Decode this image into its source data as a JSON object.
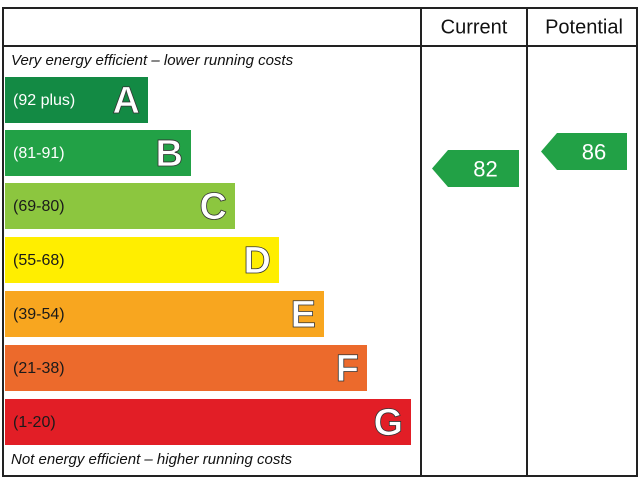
{
  "header": {
    "current": "Current",
    "potential": "Potential"
  },
  "top_note": "Very energy efficient – lower running costs",
  "bands": [
    {
      "range": "(92 plus)",
      "letter": "A",
      "color": "#138a44",
      "text_color": "#ffffff"
    },
    {
      "range": "(81-91)",
      "letter": "B",
      "color": "#22a146",
      "text_color": "#ffffff"
    },
    {
      "range": "(69-80)",
      "letter": "C",
      "color": "#8cc63f",
      "text_color": "#1a1a1a"
    },
    {
      "range": "(55-68)",
      "letter": "D",
      "color": "#ffee00",
      "text_color": "#1a1a1a"
    },
    {
      "range": "(39-54)",
      "letter": "E",
      "color": "#f8a61f",
      "text_color": "#1a1a1a"
    },
    {
      "range": "(21-38)",
      "letter": "F",
      "color": "#ec6a2c",
      "text_color": "#1a1a1a"
    },
    {
      "range": "(1-20)",
      "letter": "G",
      "color": "#e21e26",
      "text_color": "#1a1a1a"
    }
  ],
  "bottom_note": "Not energy efficient – higher running costs",
  "current": {
    "value": 82,
    "color": "#22a146"
  },
  "potential": {
    "value": 86,
    "color": "#22a146"
  }
}
